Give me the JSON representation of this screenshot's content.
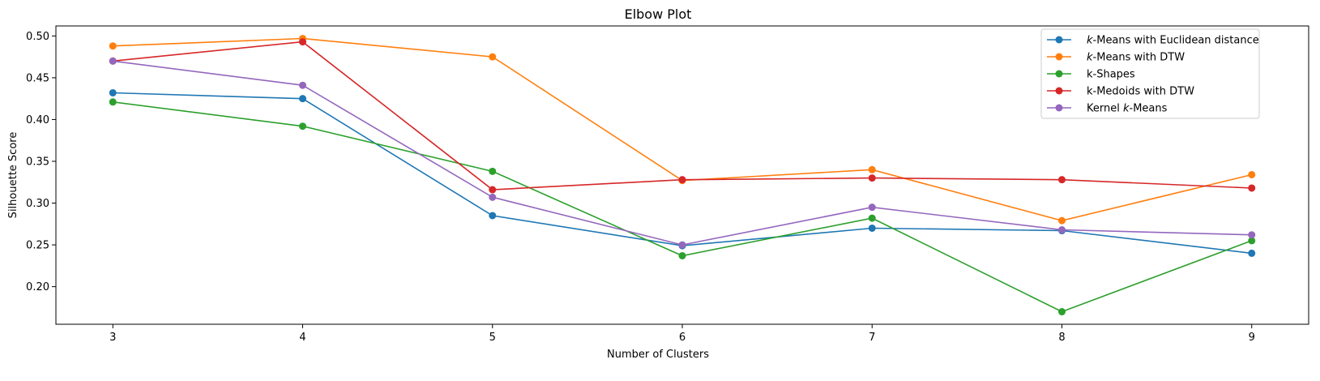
{
  "chart_data": {
    "type": "line",
    "title": "Elbow Plot",
    "xlabel": "Number of Clusters",
    "ylabel": "Silhouette Score",
    "x": [
      3,
      4,
      5,
      6,
      7,
      8,
      9
    ],
    "xlim": [
      2.7,
      9.3
    ],
    "ylim": [
      0.155,
      0.512
    ],
    "yticks": [
      "0.20",
      "0.25",
      "0.30",
      "0.35",
      "0.40",
      "0.45",
      "0.50"
    ],
    "ytick_values": [
      0.2,
      0.25,
      0.3,
      0.35,
      0.4,
      0.45,
      0.5
    ],
    "xticks": [
      "3",
      "4",
      "5",
      "6",
      "7",
      "8",
      "9"
    ],
    "grid": false,
    "legend_position": "top-right",
    "series": [
      {
        "name": "k-Means with Euclidean distance",
        "name_italic_prefix": "k",
        "name_rest": "-Means with Euclidean distance",
        "color": "#1f77b4",
        "values": [
          0.432,
          0.425,
          0.285,
          0.249,
          0.27,
          0.267,
          0.24
        ]
      },
      {
        "name": "k-Means with DTW",
        "name_italic_prefix": "k",
        "name_rest": "-Means with DTW",
        "color": "#ff7f0e",
        "values": [
          0.488,
          0.497,
          0.475,
          0.327,
          0.34,
          0.279,
          0.334
        ]
      },
      {
        "name": "k-Shapes",
        "name_italic_prefix": "",
        "name_rest": "k-Shapes",
        "color": "#2ca02c",
        "values": [
          0.421,
          0.392,
          0.338,
          0.237,
          0.282,
          0.17,
          0.255
        ]
      },
      {
        "name": "k-Medoids with DTW",
        "name_italic_prefix": "",
        "name_rest": "k-Medoids with DTW",
        "color": "#d62728",
        "values": [
          0.47,
          0.493,
          0.316,
          0.328,
          0.33,
          0.328,
          0.318
        ]
      },
      {
        "name": "Kernel k-Means",
        "name_italic_prefix": "",
        "name_rest": "Kernel ",
        "name_italic_mid": "k",
        "name_tail": "-Means",
        "color": "#9467bd",
        "values": [
          0.47,
          0.441,
          0.307,
          0.25,
          0.295,
          0.268,
          0.262
        ]
      }
    ]
  }
}
